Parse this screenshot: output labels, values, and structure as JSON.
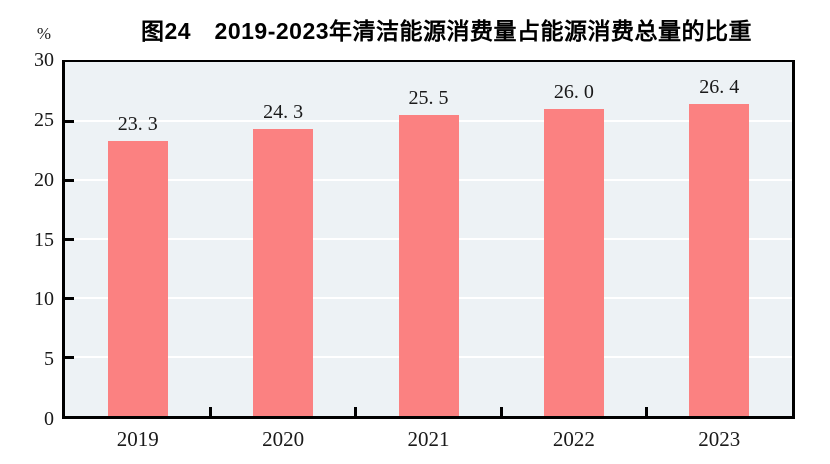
{
  "title": "图24　2019-2023年清洁能源消费量占能源消费总量的比重",
  "y_axis": {
    "unit": "%",
    "tick_labels": [
      "30",
      "25",
      "20",
      "15",
      "10",
      "5",
      "0"
    ]
  },
  "chart_data": {
    "type": "bar",
    "title": "图24　2019-2023年清洁能源消费量占能源消费总量的比重",
    "categories": [
      "2019",
      "2020",
      "2021",
      "2022",
      "2023"
    ],
    "values": [
      23.3,
      24.3,
      25.5,
      26.0,
      26.4
    ],
    "value_labels": [
      "23. 3",
      "24. 3",
      "25. 5",
      "26. 0",
      "26. 4"
    ],
    "xlabel": "",
    "ylabel": "%",
    "ylim": [
      0,
      30
    ],
    "ytick_interval": 5,
    "grid": true,
    "legend": "none",
    "colors": {
      "bar": "#fb8181",
      "plot_background": "#edf2f5",
      "gridline": "#ffffff",
      "axis": "#000000",
      "text": "#1a1a1a"
    }
  }
}
